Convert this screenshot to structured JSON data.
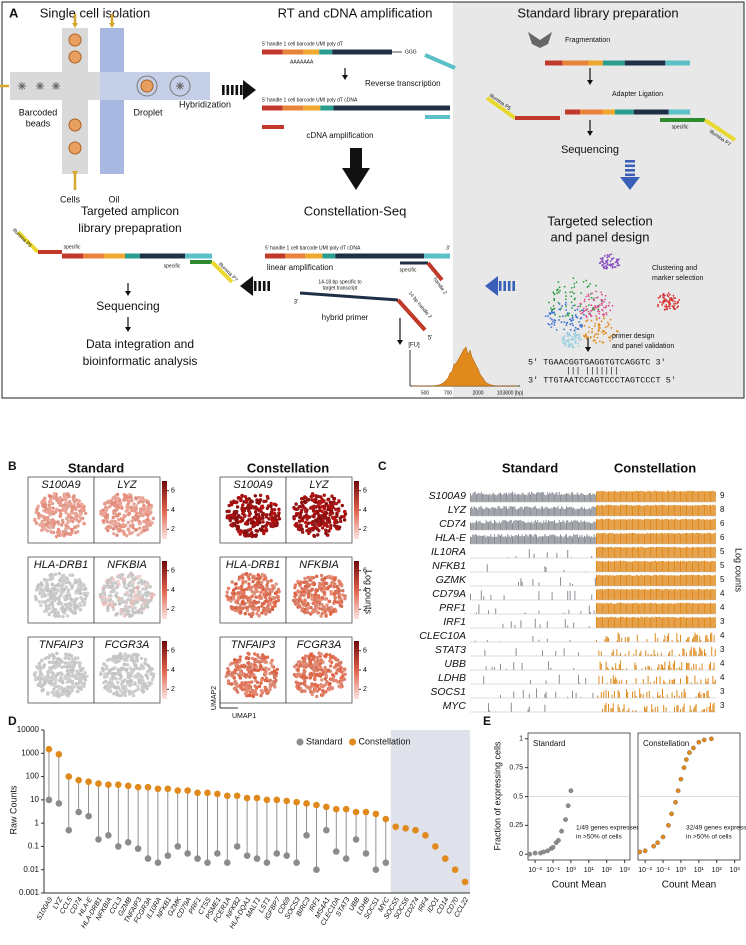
{
  "panel_a": {
    "label": "A",
    "isolation": {
      "title": "Single cell isolation",
      "beads": [
        "Barcoded",
        "beads"
      ],
      "cells": "Cells",
      "oil": "Oil",
      "droplet": "Droplet",
      "hybridization": "Hybridization"
    },
    "rt": {
      "title": "RT and cDNA amplification",
      "strand1": "5' handle 1 cell barcode UMI  poly dT",
      "polya": "AAAAAAA",
      "ggg": "GGG",
      "step1": "Reverse transcription",
      "strand2": "5' handle 1 cell barcode UMI  poly dT     cDNA",
      "step2": "cDNA amplification"
    },
    "standard": {
      "title": "Standard library preparation",
      "fragmentation": "Fragmentation",
      "ligation": "Adapter Ligation",
      "p5": "Illumina P5",
      "specific": "specific",
      "p7": "Illumina P7",
      "sequencing": "Sequencing"
    },
    "targeted": {
      "title": [
        "Targeted selection",
        "and panel design"
      ],
      "clustering": [
        "Clustering and",
        "marker selection"
      ],
      "primer": [
        "primer design",
        "and panel validation"
      ],
      "seq_top": "5'  TGAACGGTGAGGTGTCAGGTC  3'",
      "pairing": "|||  |||||||",
      "seq_bottom": "3'  TTGTAATCCAGTCCCTAGTCCCT  5'"
    },
    "constellation": {
      "title": "Constellation-Seq",
      "strand": "5' handle 1 cell barcode UMI  poly dT    cDNA",
      "end3": "3'",
      "linear": "linear amplification",
      "specific": "specific",
      "handle2": "handle 2",
      "primer_specific": [
        "14-18 bp specific to",
        "target transcript"
      ],
      "primer_handle": "14 bp handle 2",
      "primer_3": "3'",
      "primer_5": "5'",
      "hybrid": "hybrid primer",
      "fu": "[FU]",
      "bp_ticks": [
        "500",
        "700",
        "2000",
        "103800 [bp]"
      ]
    },
    "amplicon": {
      "title": [
        "Targeted amplicon",
        "library prepapration"
      ],
      "p5": "Illumina P5",
      "specific1": "specific",
      "specific2": "specific",
      "p7": "Illumina P7",
      "sequencing": "Sequencing",
      "analysis": [
        "Data integration and",
        "bioinformatic analysis"
      ]
    }
  },
  "panel_b": {
    "label": "B",
    "standard": "Standard",
    "constellation": "Constellation",
    "genes": [
      [
        "S100A9",
        "LYZ"
      ],
      [
        "HLA-DRB1",
        "NFKBIA"
      ],
      [
        "TNFAIP3",
        "FCGR3A"
      ]
    ],
    "colorbar_ticks": [
      2,
      4,
      6
    ],
    "colorbar_label": "Log counts",
    "xlabel": "UMAP1",
    "ylabel": "UMAP2"
  },
  "panel_c": {
    "label": "C",
    "standard": "Standard",
    "constellation": "Constellation",
    "genes": [
      "S100A9",
      "LYZ",
      "CD74",
      "HLA-E",
      "IL10RA",
      "NFKB1",
      "GZMK",
      "CD79A",
      "PRF1",
      "IRF1",
      "CLEC10A",
      "STAT3",
      "UBB",
      "LDHB",
      "SOCS1",
      "MYC"
    ],
    "max_log": [
      9,
      8,
      6,
      6,
      5,
      5,
      5,
      4,
      4,
      3,
      4,
      3,
      4,
      4,
      3,
      3
    ],
    "colorbar_label": "Log counts"
  },
  "panel_d_label": "D",
  "panel_e_label": "E",
  "chart_data": [
    {
      "type": "dot",
      "ylabel": "Raw Counts",
      "categories": [
        "S100A9",
        "LYZ",
        "CCL5",
        "CD74",
        "HLA-E",
        "HLA-DRB1",
        "NFKBIA",
        "CCL3",
        "GZMB",
        "TNFAIP3",
        "FCGR3A",
        "IL10RA",
        "NFKB1",
        "GZMK",
        "CD79A",
        "PRF1",
        "CTSS",
        "PSME1",
        "FCER1A",
        "NFKB2",
        "HLA-DQA1",
        "MALT1",
        "LST1",
        "IGFBP7",
        "CD69",
        "SOCS3",
        "BIRC3",
        "IRF1",
        "MS4A1",
        "CLEC10A",
        "STAT3",
        "UBB",
        "LDHB",
        "SOCS1",
        "MYC",
        "SOCS5",
        "SOCS6",
        "CD274",
        "IRF4",
        "IDO1",
        "CD14",
        "CD70",
        "CCL22"
      ],
      "series": [
        {
          "name": "Standard",
          "color": "#8c8c8c",
          "values": [
            10,
            7,
            0.5,
            3,
            2,
            0.2,
            0.3,
            0.1,
            0.15,
            0.08,
            0.03,
            0.02,
            0.04,
            0.1,
            0.05,
            0.03,
            0.02,
            0.05,
            0.02,
            0.1,
            0.04,
            0.03,
            0.02,
            0.05,
            0.04,
            0.02,
            0.3,
            0.01,
            0.5,
            0.06,
            0.03,
            0.2,
            0.05,
            0.01,
            0.02,
            null,
            null,
            null,
            null,
            null,
            null,
            null,
            null
          ]
        },
        {
          "name": "Constellation",
          "color": "#e08a1e",
          "values": [
            1500,
            900,
            100,
            70,
            60,
            50,
            45,
            45,
            40,
            35,
            35,
            30,
            30,
            25,
            25,
            20,
            20,
            18,
            15,
            15,
            12,
            12,
            10,
            10,
            9,
            8,
            7,
            6,
            5,
            4,
            4,
            3,
            3,
            2.5,
            1.5,
            0.7,
            0.6,
            0.5,
            0.3,
            0.1,
            0.03,
            0.01,
            0.003
          ]
        }
      ],
      "ylim": [
        0.001,
        10000
      ],
      "yticks": [
        0.001,
        0.01,
        0.1,
        1,
        10,
        100,
        1000,
        10000
      ],
      "log_y": true,
      "legend": "top"
    },
    {
      "type": "scatter",
      "title": "Standard",
      "annotation": [
        "1/49 genes expressed",
        "in >50% of cells"
      ],
      "x": [
        0.005,
        0.01,
        0.02,
        0.03,
        0.05,
        0.08,
        0.1,
        0.15,
        0.2,
        0.3,
        0.5,
        0.7,
        1
      ],
      "values": [
        0,
        0.01,
        0.01,
        0.02,
        0.03,
        0.05,
        0.06,
        0.1,
        0.12,
        0.2,
        0.3,
        0.42,
        0.55
      ],
      "color": "#8c8c8c",
      "xlim": [
        0.004,
        2000
      ],
      "xticks": [
        {
          "value": 0.01,
          "label": "10⁻²"
        },
        {
          "value": 0.1,
          "label": "10⁻¹"
        },
        {
          "value": 1,
          "label": "10⁰"
        },
        {
          "value": 10,
          "label": "10¹"
        },
        {
          "value": 100,
          "label": "10²"
        },
        {
          "value": 1000,
          "label": "10³"
        }
      ],
      "ylim": [
        -0.05,
        1.05
      ],
      "yticks": [
        0,
        0.25,
        0.5,
        0.75,
        1
      ],
      "log_x": true,
      "xlabel": "Count Mean",
      "ylabel": "Fraction of expressing cells"
    },
    {
      "type": "scatter",
      "title": "Constellation",
      "annotation": [
        "32/49 genes expressed",
        "in >50% of cells"
      ],
      "x": [
        0.005,
        0.01,
        0.03,
        0.05,
        0.1,
        0.2,
        0.3,
        0.5,
        0.7,
        1,
        1.5,
        2,
        3,
        5,
        10,
        20,
        50
      ],
      "values": [
        0.02,
        0.03,
        0.07,
        0.1,
        0.15,
        0.25,
        0.35,
        0.45,
        0.55,
        0.65,
        0.75,
        0.82,
        0.88,
        0.92,
        0.97,
        0.99,
        1
      ],
      "color": "#e08a1e",
      "xlim": [
        0.004,
        2000
      ],
      "xticks": [
        {
          "value": 0.01,
          "label": "10⁻²"
        },
        {
          "value": 0.1,
          "label": "10⁻¹"
        },
        {
          "value": 1,
          "label": "10⁰"
        },
        {
          "value": 10,
          "label": "10¹"
        },
        {
          "value": 100,
          "label": "10²"
        },
        {
          "value": 1000,
          "label": "10³"
        }
      ],
      "ylim": [
        -0.05,
        1.05
      ],
      "log_x": true,
      "xlabel": "Count Mean"
    }
  ]
}
